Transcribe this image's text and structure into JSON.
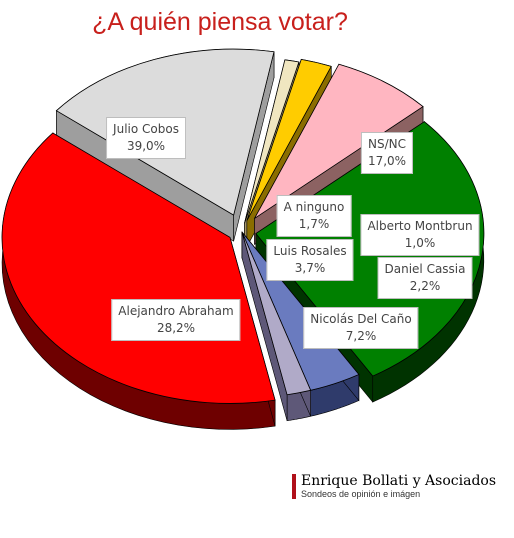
{
  "chart_data": {
    "type": "pie",
    "title": "¿A quién piensa votar?",
    "slices": [
      {
        "name": "NS/NC",
        "value": 17.0,
        "label": "17,0%",
        "color": "#dcdcdc",
        "side": "#9e9e9e"
      },
      {
        "name": "Alberto Montbrun",
        "value": 1.0,
        "label": "1,0%",
        "color": "#f0e6c0",
        "side": "#a89868"
      },
      {
        "name": "Daniel Cassia",
        "value": 2.2,
        "label": "2,2%",
        "color": "#ffcc00",
        "side": "#8a6d00"
      },
      {
        "name": "Nicolás Del Caño",
        "value": 7.2,
        "label": "7,2%",
        "color": "#ffb6c1",
        "side": "#8c6262"
      },
      {
        "name": "Alejandro Abraham",
        "value": 28.2,
        "label": "28,2%",
        "color": "#008000",
        "side": "#003300"
      },
      {
        "name": "Luis Rosales",
        "value": 3.7,
        "label": "3,7%",
        "color": "#6a7bbf",
        "side": "#2f3b6b"
      },
      {
        "name": "A ninguno",
        "value": 1.7,
        "label": "1,7%",
        "color": "#b0aac8",
        "side": "#5e5878"
      },
      {
        "name": "Julio Cobos",
        "value": 39.0,
        "label": "39,0%",
        "color": "#ff0000",
        "side": "#6e0000"
      }
    ]
  },
  "brand": {
    "name": "Enrique Bollati y Asociados",
    "tagline": "Sondeos de opinión e imágen"
  }
}
